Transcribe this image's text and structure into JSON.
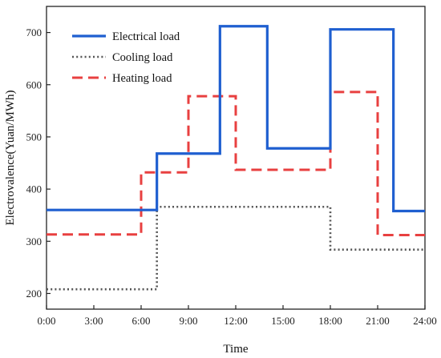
{
  "chart_data": {
    "type": "line",
    "step": true,
    "xlabel": "Time",
    "ylabel": "Electrovalence(Yuan/MWh)",
    "xlim": [
      0,
      24
    ],
    "ylim": [
      170,
      750
    ],
    "x_ticks": [
      0,
      3,
      6,
      9,
      12,
      15,
      18,
      21,
      24
    ],
    "x_tick_labels": [
      "0:00",
      "3:00",
      "6:00",
      "9:00",
      "12:00",
      "15:00",
      "18:00",
      "21:00",
      "24:00"
    ],
    "y_ticks": [
      200,
      300,
      400,
      500,
      600,
      700
    ],
    "y_tick_labels": [
      "200",
      "300",
      "400",
      "500",
      "600",
      "700"
    ],
    "legend_position": "top-left",
    "series": [
      {
        "name": "Electrical load",
        "color": "#1f5fd0",
        "style": "solid",
        "breakpoints": [
          0,
          7,
          11,
          14,
          18,
          22,
          24
        ],
        "values": [
          360,
          468,
          712,
          478,
          706,
          358
        ]
      },
      {
        "name": "Cooling load",
        "color": "#555555",
        "style": "dotted",
        "breakpoints": [
          0,
          7,
          18,
          24
        ],
        "values": [
          208,
          366,
          284
        ]
      },
      {
        "name": "Heating load",
        "color": "#e84040",
        "style": "dashed",
        "breakpoints": [
          0,
          6,
          9,
          12,
          18,
          21,
          24
        ],
        "values": [
          313,
          432,
          578,
          437,
          586,
          312
        ]
      }
    ]
  }
}
